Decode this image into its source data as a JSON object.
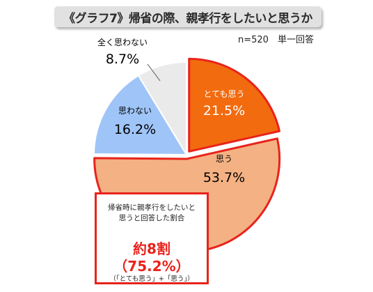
{
  "title": "《グラフ7》帰省の際、親孝行をしたいと思うか",
  "sample_note": "n=520　単一回答",
  "chart_data": {
    "type": "pie",
    "start": "12 o'clock",
    "direction": "clockwise",
    "slices": [
      {
        "label": "とても思う",
        "value": 21.5,
        "display": "21.5%",
        "color": "#f26b0f",
        "text_color": "#ffffff",
        "exploded": true
      },
      {
        "label": "思う",
        "value": 53.7,
        "display": "53.7%",
        "color": "#f4b183",
        "text_color": "#000000",
        "exploded": true
      },
      {
        "label": "思わない",
        "value": 16.2,
        "display": "16.2%",
        "color": "#9fc5f8",
        "text_color": "#000000",
        "exploded": false
      },
      {
        "label": "全く思わない",
        "value": 8.7,
        "display": "8.7%",
        "color": "#eaeaea",
        "text_color": "#000000",
        "exploded": false
      }
    ],
    "highlight_outline_color": "#e8231b"
  },
  "summary": {
    "caption": "帰省時に親孝行をしたいと\n思うと回答した割合",
    "value": "約8割",
    "percent": "（75.2%）",
    "note": "（「とても思う」+「思う」）"
  }
}
